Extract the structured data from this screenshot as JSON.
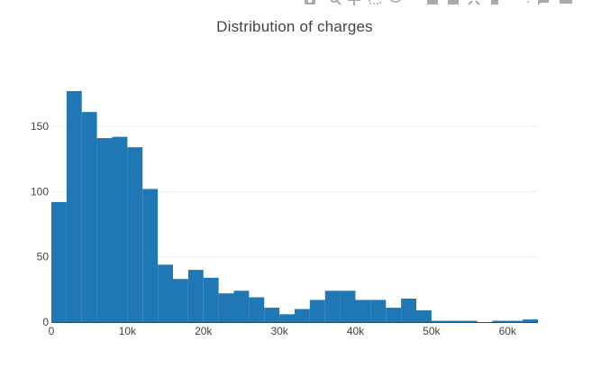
{
  "modebar": {
    "buttons": [
      {
        "name": "camera-icon"
      },
      {
        "name": "zoom-icon"
      },
      {
        "name": "pan-icon"
      },
      {
        "name": "box-select-icon"
      },
      {
        "name": "lasso-select-icon"
      },
      {
        "name": "zoom-in-icon"
      },
      {
        "name": "zoom-out-icon"
      },
      {
        "name": "autoscale-icon"
      },
      {
        "name": "reset-axes-icon"
      },
      {
        "name": "spike-lines-icon"
      },
      {
        "name": "hover-closest-icon"
      },
      {
        "name": "hover-compare-icon"
      }
    ]
  },
  "chart_data": {
    "type": "bar",
    "title": "Distribution of charges",
    "xlabel": "",
    "ylabel": "",
    "bin_size": 2000,
    "bin_start": 0,
    "values": [
      92,
      177,
      161,
      141,
      142,
      134,
      102,
      44,
      33,
      40,
      34,
      22,
      24,
      19,
      11,
      6,
      10,
      17,
      24,
      24,
      17,
      17,
      11,
      18,
      9,
      1,
      1,
      1,
      0,
      1,
      1,
      2
    ],
    "xlim": [
      0,
      64000
    ],
    "ylim": [
      0,
      186
    ],
    "x_ticks": [
      {
        "value": 0,
        "label": "0"
      },
      {
        "value": 10000,
        "label": "10k"
      },
      {
        "value": 20000,
        "label": "20k"
      },
      {
        "value": 30000,
        "label": "30k"
      },
      {
        "value": 40000,
        "label": "40k"
      },
      {
        "value": 50000,
        "label": "50k"
      },
      {
        "value": 60000,
        "label": "60k"
      }
    ],
    "y_ticks": [
      {
        "value": 0,
        "label": "0"
      },
      {
        "value": 50,
        "label": "50"
      },
      {
        "value": 100,
        "label": "100"
      },
      {
        "value": 150,
        "label": "150"
      }
    ],
    "grid": true,
    "bar_color": "#1f77b4",
    "grid_color": "#eeeeee"
  }
}
